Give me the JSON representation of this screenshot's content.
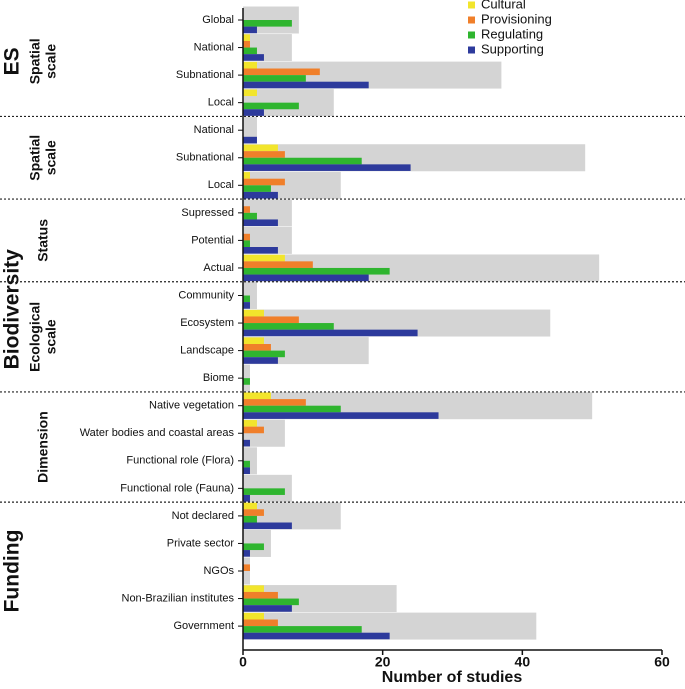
{
  "chart_data": {
    "type": "bar",
    "orientation": "horizontal",
    "x_label": "Number of studies",
    "xlim": [
      0,
      60
    ],
    "xticks": [
      0,
      20,
      40,
      60
    ],
    "legend_position": "upper right",
    "groups": [
      {
        "label": "ES",
        "sections": [
          {
            "label": [
              "Spatial",
              "scale"
            ],
            "categories": [
              "Global",
              "National",
              "Subnational",
              "Local"
            ]
          }
        ]
      },
      {
        "label": "Biodiversity",
        "sections": [
          {
            "label": [
              "Spatial",
              "scale"
            ],
            "categories": [
              "National",
              "Subnational",
              "Local"
            ]
          },
          {
            "label": [
              "Status"
            ],
            "categories": [
              "Supressed",
              "Potential",
              "Actual"
            ]
          },
          {
            "label": [
              "Ecological",
              "scale"
            ],
            "categories": [
              "Community",
              "Ecosystem",
              "Landscape",
              "Biome"
            ]
          },
          {
            "label": [
              "Dimension"
            ],
            "categories": [
              "Native vegetation",
              "Water bodies and coastal areas",
              "Functional role (Flora)",
              "Functional role (Fauna)"
            ]
          }
        ]
      },
      {
        "label": "Funding",
        "sections": [
          {
            "label": null,
            "categories": [
              "Not declared",
              "Private sector",
              "NGOs",
              "Non-Brazilian institutes",
              "Government"
            ]
          }
        ]
      }
    ],
    "total": {
      "color": "#d4d4d4",
      "values": [
        8,
        7,
        37,
        13,
        2,
        49,
        14,
        7,
        7,
        51,
        2,
        44,
        18,
        1,
        50,
        6,
        2,
        7,
        14,
        4,
        1,
        22,
        42
      ]
    },
    "series": [
      {
        "name": "Cultural",
        "color": "#f2e52c",
        "values": [
          0,
          1,
          2,
          2,
          0,
          5,
          1,
          0,
          0,
          6,
          0,
          3,
          3,
          0,
          4,
          2,
          0,
          0,
          2,
          0,
          0,
          3,
          3
        ]
      },
      {
        "name": "Provisioning",
        "color": "#f07f2a",
        "values": [
          0,
          1,
          11,
          0,
          0,
          6,
          6,
          1,
          1,
          10,
          0,
          8,
          4,
          0,
          9,
          3,
          0,
          0,
          3,
          0,
          1,
          5,
          5
        ]
      },
      {
        "name": "Regulating",
        "color": "#2fb52f",
        "values": [
          7,
          2,
          9,
          8,
          0,
          17,
          4,
          2,
          1,
          21,
          1,
          13,
          6,
          1,
          14,
          0,
          1,
          6,
          2,
          3,
          0,
          8,
          17
        ]
      },
      {
        "name": "Supporting",
        "color": "#2d3a9c",
        "values": [
          2,
          3,
          18,
          3,
          2,
          24,
          5,
          5,
          5,
          18,
          1,
          25,
          5,
          0,
          28,
          1,
          1,
          1,
          7,
          1,
          0,
          7,
          21
        ]
      }
    ]
  }
}
